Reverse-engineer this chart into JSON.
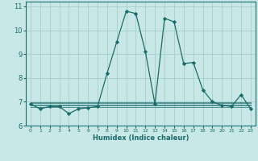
{
  "xlabel": "Humidex (Indice chaleur)",
  "bg_color": "#c8e8e8",
  "grid_color": "#a8cccc",
  "line_color": "#1a6b6b",
  "xlim": [
    -0.5,
    23.5
  ],
  "ylim": [
    6.2,
    11.2
  ],
  "yticks": [
    6,
    7,
    8,
    9,
    10,
    11
  ],
  "xticks": [
    0,
    1,
    2,
    3,
    4,
    5,
    6,
    7,
    8,
    9,
    10,
    11,
    12,
    13,
    14,
    15,
    16,
    17,
    18,
    19,
    20,
    21,
    22,
    23
  ],
  "main_x": [
    0,
    1,
    2,
    3,
    4,
    5,
    6,
    7,
    8,
    9,
    10,
    11,
    12,
    13,
    14,
    15,
    16,
    17,
    18,
    19,
    20,
    21,
    22,
    23
  ],
  "main_y": [
    6.9,
    6.7,
    6.8,
    6.8,
    6.5,
    6.7,
    6.75,
    6.8,
    8.2,
    9.5,
    10.8,
    10.7,
    9.1,
    6.9,
    10.5,
    10.35,
    8.6,
    8.65,
    7.5,
    7.0,
    6.85,
    6.8,
    7.3,
    6.7
  ],
  "flat_lines": [
    {
      "x": [
        0,
        23
      ],
      "y": [
        6.78,
        6.78
      ]
    },
    {
      "x": [
        0,
        23
      ],
      "y": [
        6.83,
        6.83
      ]
    },
    {
      "x": [
        0,
        23
      ],
      "y": [
        6.88,
        6.88
      ]
    },
    {
      "x": [
        0,
        23
      ],
      "y": [
        6.93,
        6.93
      ]
    },
    {
      "x": [
        0,
        23
      ],
      "y": [
        6.98,
        6.98
      ]
    }
  ]
}
